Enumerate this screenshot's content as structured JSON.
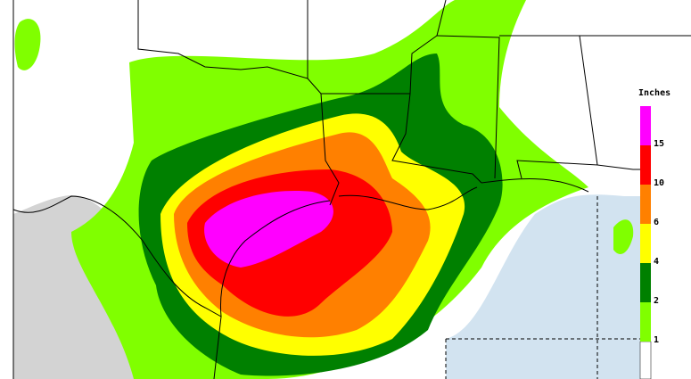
{
  "legend": {
    "title": "Inches",
    "levels": [
      {
        "value": 15,
        "color": "#ff00ff"
      },
      {
        "value": 10,
        "color": "#ff0000"
      },
      {
        "value": 6,
        "color": "#ff8000"
      },
      {
        "value": 4,
        "color": "#ffff00"
      },
      {
        "value": 2,
        "color": "#008000"
      },
      {
        "value": 1,
        "color": "#80ff00"
      }
    ]
  }
}
